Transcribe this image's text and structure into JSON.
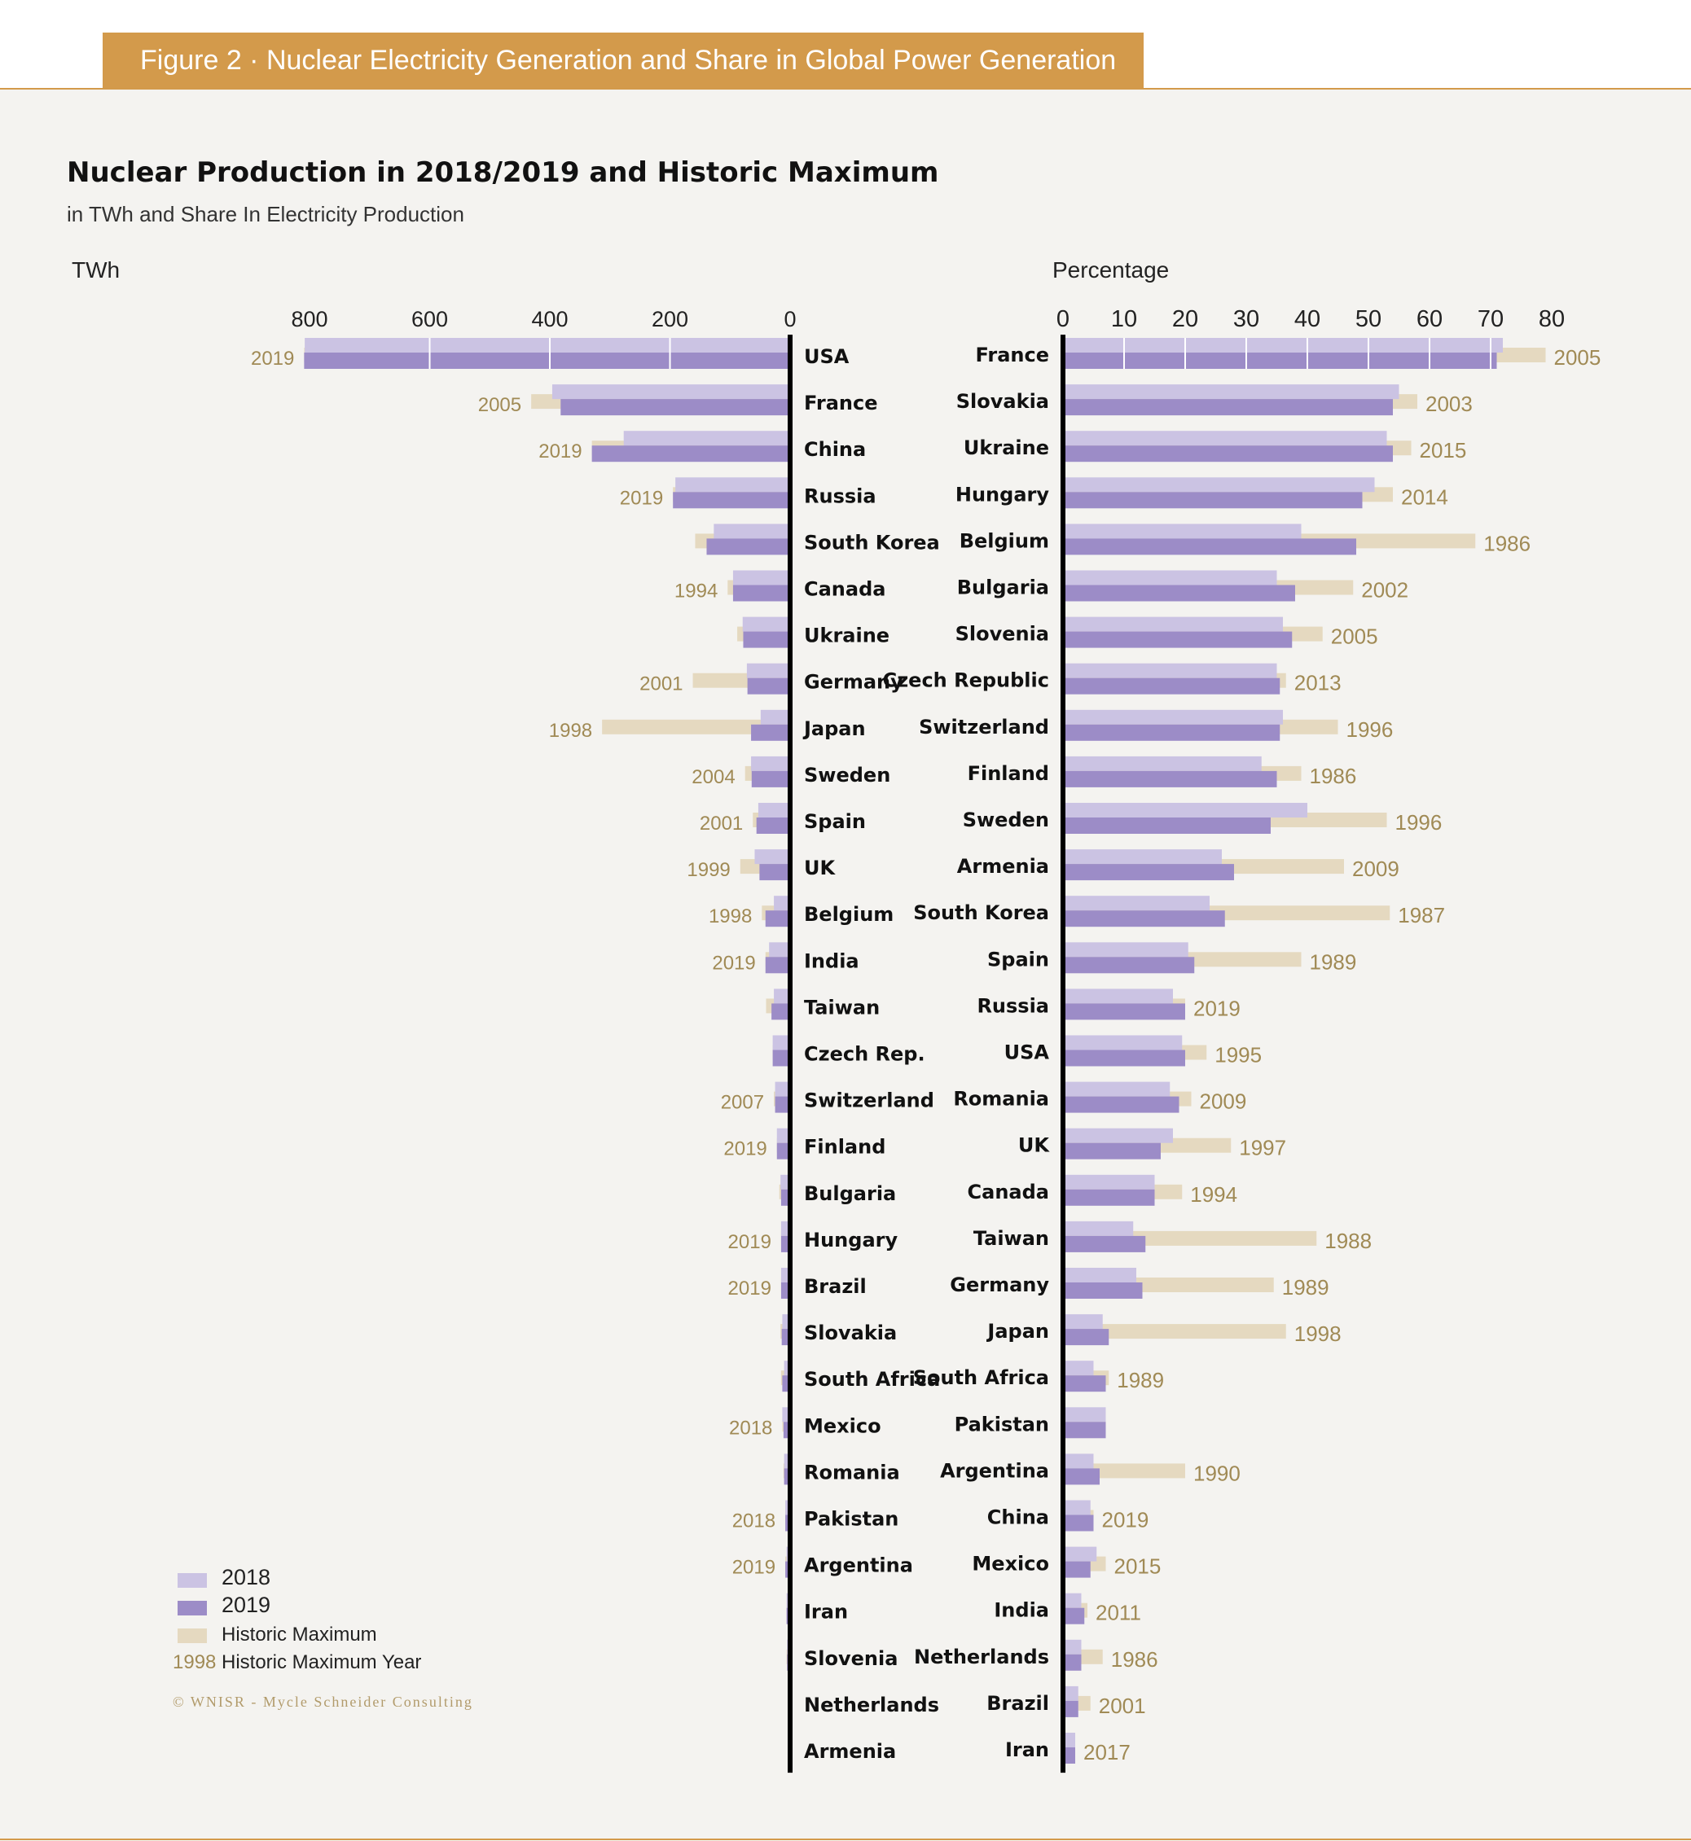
{
  "figure_label": "Figure 2 · Nuclear Electricity Generation and Share in Global Power Generation",
  "colors": {
    "band": "#d39a4b",
    "y2018": "#cbc3e3",
    "y2019": "#9c8cc7",
    "historic": "#e5d9c0",
    "year_text": "#a08a55",
    "axis": "#000000",
    "grid": "#ffffff"
  },
  "legend": {
    "l2018": "2018",
    "l2019": "2019",
    "historic": "Historic Maximum",
    "year_sample": "1998",
    "year_label": "Historic Maximum Year"
  },
  "credit": "© WNISR - Mycle Schneider Consulting",
  "chart_data": [
    {
      "type": "bar",
      "title": "Nuclear Production in 2018/2019 and Historic Maximum",
      "subtitle": "in TWh and Share In Electricity Production",
      "axis_label": "TWh",
      "orientation": "horizontal-reversed",
      "xlim": [
        0,
        800
      ],
      "ticks": [
        800,
        600,
        400,
        200,
        0
      ],
      "categories": [
        "USA",
        "France",
        "China",
        "Russia",
        "South Korea",
        "Canada",
        "Ukraine",
        "Germany",
        "Japan",
        "Sweden",
        "Spain",
        "UK",
        "Belgium",
        "India",
        "Taiwan",
        "Czech Rep.",
        "Switzerland",
        "Finland",
        "Bulgaria",
        "Hungary",
        "Brazil",
        "Slovakia",
        "South Africa",
        "Mexico",
        "Romania",
        "Pakistan",
        "Argentina",
        "Iran",
        "Slovenia",
        "Netherlands",
        "Armenia"
      ],
      "series": [
        {
          "name": "2018",
          "values": [
            808,
            396,
            277,
            191,
            127,
            95,
            79,
            72,
            49,
            65,
            53,
            59,
            27,
            35,
            27,
            29,
            25,
            22,
            16,
            15,
            15,
            13,
            10,
            13,
            10,
            8,
            6,
            6,
            5,
            3,
            2
          ]
        },
        {
          "name": "2019",
          "values": [
            809,
            382,
            330,
            195,
            139,
            95,
            78,
            71,
            65,
            64,
            56,
            51,
            41,
            41,
            31,
            29,
            25,
            22,
            15,
            15,
            15,
            14,
            13,
            11,
            10,
            8,
            8,
            6,
            5,
            4,
            2
          ]
        },
        {
          "name": "Historic Maximum",
          "values": [
            809,
            431,
            330,
            195,
            158,
            104,
            88,
            162,
            313,
            75,
            62,
            83,
            47,
            41,
            40,
            29,
            27,
            22,
            18,
            15,
            15,
            16,
            15,
            13,
            11,
            8,
            8,
            6,
            6,
            4,
            4
          ]
        }
      ],
      "historic_years": [
        "2019",
        "2005",
        "2019",
        "2019",
        "",
        "1994",
        "",
        "2001",
        "1998",
        "2004",
        "2001",
        "1999",
        "1998",
        "2019",
        "",
        "",
        "2007",
        "2019",
        "",
        "2019",
        "2019",
        "",
        "",
        "2018",
        "",
        "2018",
        "2019",
        "",
        "",
        "",
        ""
      ]
    },
    {
      "type": "bar",
      "axis_label": "Percentage",
      "orientation": "horizontal",
      "xlim": [
        0,
        80
      ],
      "ticks": [
        0,
        10,
        20,
        30,
        40,
        50,
        60,
        70,
        80
      ],
      "categories": [
        "France",
        "Slovakia",
        "Ukraine",
        "Hungary",
        "Belgium",
        "Bulgaria",
        "Slovenia",
        "Czech Republic",
        "Switzerland",
        "Finland",
        "Sweden",
        "Armenia",
        "South Korea",
        "Spain",
        "Russia",
        "USA",
        "Romania",
        "UK",
        "Canada",
        "Taiwan",
        "Germany",
        "Japan",
        "South Africa",
        "Pakistan",
        "Argentina",
        "China",
        "Mexico",
        "India",
        "Netherlands",
        "Brazil",
        "Iran"
      ],
      "series": [
        {
          "name": "2018",
          "values": [
            72,
            55,
            53,
            51,
            39,
            35,
            36,
            35,
            36,
            32.5,
            40,
            26,
            24,
            20.5,
            18,
            19.5,
            17.5,
            18,
            15,
            11.5,
            12,
            6.5,
            5,
            7,
            5,
            4.5,
            5.5,
            3,
            3,
            2.5,
            2
          ]
        },
        {
          "name": "2019",
          "values": [
            71,
            54,
            54,
            49,
            48,
            38,
            37.5,
            35.5,
            35.5,
            35,
            34,
            28,
            26.5,
            21.5,
            20,
            20,
            19,
            16,
            15,
            13.5,
            13,
            7.5,
            7,
            7,
            6,
            5,
            4.5,
            3.5,
            3,
            2.5,
            2
          ]
        },
        {
          "name": "Historic Maximum",
          "values": [
            79,
            58,
            57,
            54,
            67.5,
            47.5,
            42.5,
            36.5,
            45,
            39,
            53,
            46,
            53.5,
            39,
            20,
            23.5,
            21,
            27.5,
            19.5,
            41.5,
            34.5,
            36.5,
            7.5,
            7,
            20,
            5,
            7,
            4,
            6.5,
            4.5,
            2
          ]
        }
      ],
      "historic_years": [
        "2005",
        "2003",
        "2015",
        "2014",
        "1986",
        "2002",
        "2005",
        "2013",
        "1996",
        "1986",
        "1996",
        "2009",
        "1987",
        "1989",
        "2019",
        "1995",
        "2009",
        "1997",
        "1994",
        "1988",
        "1989",
        "1998",
        "1989",
        "",
        "1990",
        "2019",
        "2015",
        "2011",
        "1986",
        "2001",
        "2017"
      ]
    }
  ]
}
